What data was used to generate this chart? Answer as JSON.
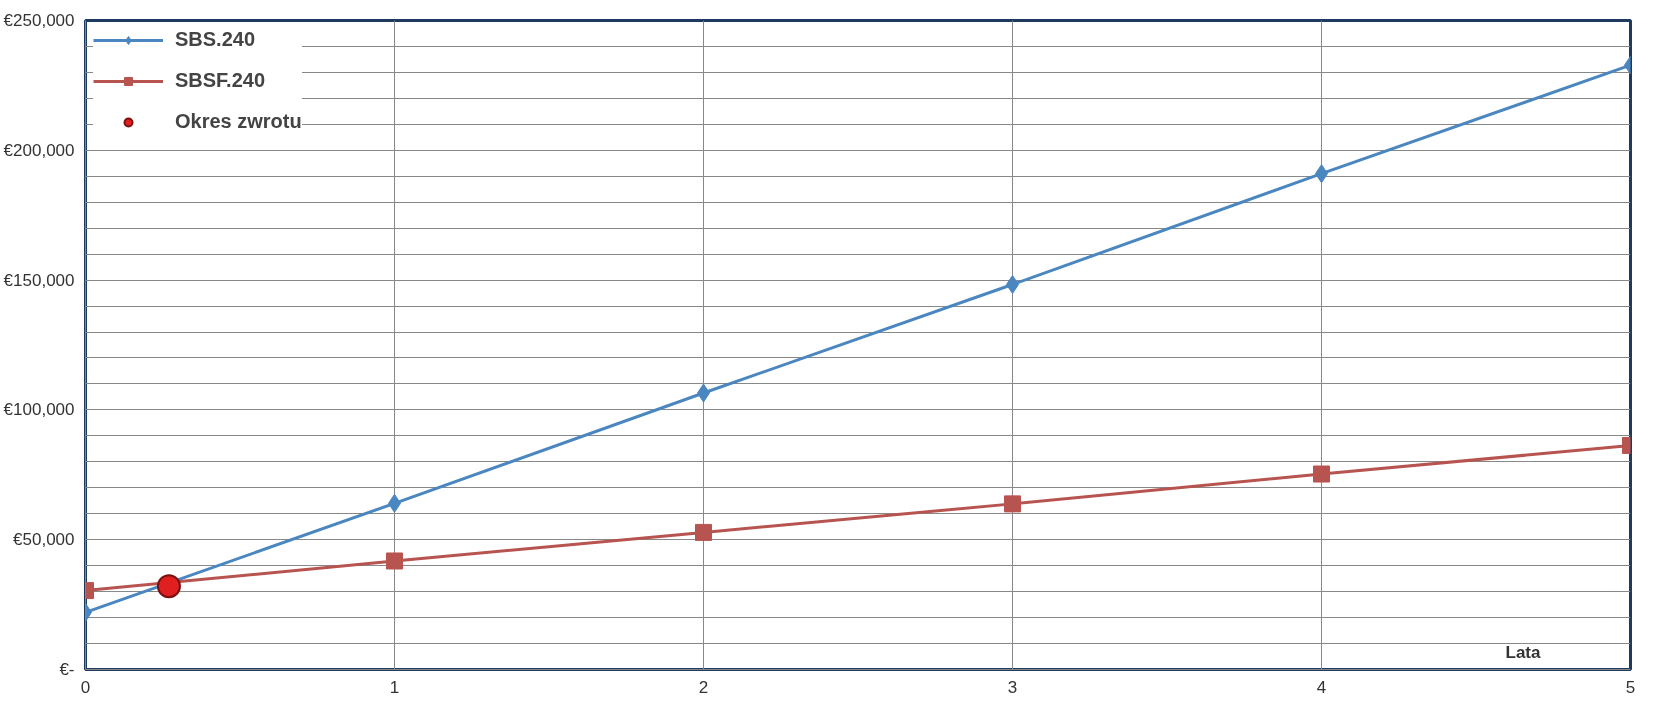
{
  "chart_data": {
    "type": "line",
    "xlabel": "Lata",
    "x": [
      0,
      1,
      2,
      3,
      4,
      5
    ],
    "series": [
      {
        "name": "SBS.240",
        "color": "#4a86c0",
        "marker": "diamond",
        "values": [
          22000,
          64000,
          106500,
          148300,
          191000,
          232800
        ]
      },
      {
        "name": "SBSF.240",
        "color": "#b85450",
        "marker": "square",
        "values": [
          30400,
          41800,
          52800,
          63800,
          75300,
          86300
        ]
      },
      {
        "name": "Okres zwrotu",
        "type": "scatter",
        "color": "#e02020",
        "marker": "circle",
        "x": [
          0.27
        ],
        "values": [
          32100
        ]
      }
    ],
    "xlim": [
      0,
      5
    ],
    "xticks": [
      0,
      1,
      2,
      3,
      4,
      5
    ],
    "ylim": [
      0,
      250000
    ],
    "yticks": [
      {
        "value": 0,
        "label": "€-"
      },
      {
        "value": 10000,
        "label": null
      },
      {
        "value": 20000,
        "label": null
      },
      {
        "value": 30000,
        "label": null
      },
      {
        "value": 40000,
        "label": null
      },
      {
        "value": 50000,
        "label": "€50,000"
      },
      {
        "value": 60000,
        "label": null
      },
      {
        "value": 70000,
        "label": null
      },
      {
        "value": 80000,
        "label": null
      },
      {
        "value": 90000,
        "label": null
      },
      {
        "value": 100000,
        "label": "€100,000"
      },
      {
        "value": 110000,
        "label": null
      },
      {
        "value": 120000,
        "label": null
      },
      {
        "value": 130000,
        "label": null
      },
      {
        "value": 140000,
        "label": null
      },
      {
        "value": 150000,
        "label": "€150,000"
      },
      {
        "value": 160000,
        "label": null
      },
      {
        "value": 170000,
        "label": null
      },
      {
        "value": 180000,
        "label": null
      },
      {
        "value": 190000,
        "label": null
      },
      {
        "value": 200000,
        "label": "€200,000"
      },
      {
        "value": 210000,
        "label": null
      },
      {
        "value": 220000,
        "label": null
      },
      {
        "value": 230000,
        "label": null
      },
      {
        "value": 240000,
        "label": null
      },
      {
        "value": 250000,
        "label": "€250,000"
      }
    ],
    "grid": true,
    "legend": "top left"
  }
}
